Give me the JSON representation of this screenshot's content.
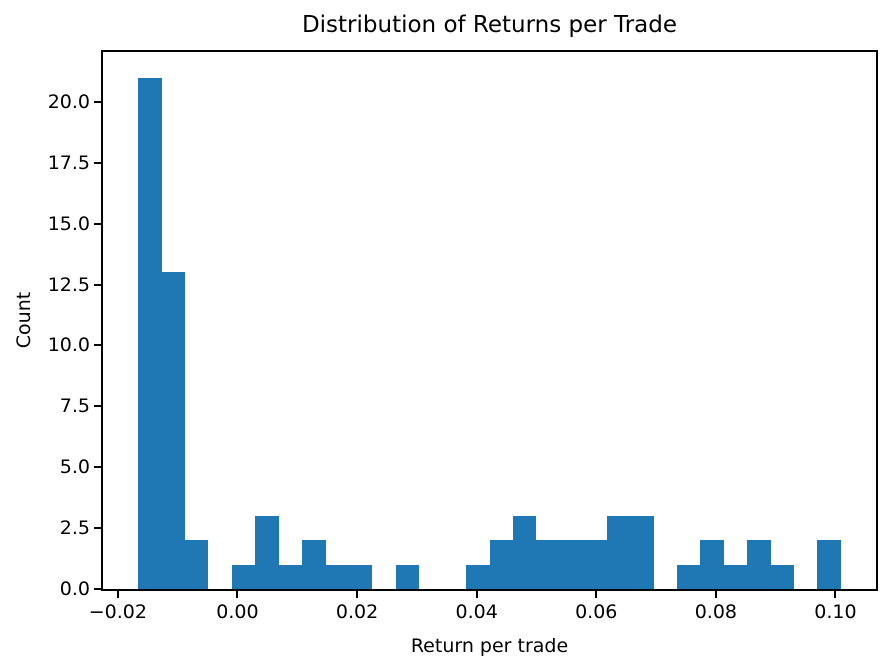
{
  "chart_data": {
    "type": "bar",
    "subtype": "histogram",
    "title": "Distribution of Returns per Trade",
    "xlabel": "Return per trade",
    "ylabel": "Count",
    "bar_color": "#1f77b4",
    "background_color": "#ffffff",
    "spine_color": "#000000",
    "grid": false,
    "legend": null,
    "bin_start": -0.0166,
    "bin_width": 0.003917,
    "counts": [
      21,
      13,
      2,
      0,
      1,
      3,
      1,
      2,
      1,
      1,
      0,
      1,
      0,
      0,
      1,
      2,
      3,
      2,
      2,
      2,
      3,
      3,
      0,
      1,
      2,
      1,
      2,
      1,
      0,
      2
    ],
    "xlim": [
      -0.02248,
      0.10678
    ],
    "ylim": [
      0,
      22.05
    ],
    "xticks": [
      {
        "v": -0.02,
        "label": "−0.02"
      },
      {
        "v": 0.0,
        "label": "0.00"
      },
      {
        "v": 0.02,
        "label": "0.02"
      },
      {
        "v": 0.04,
        "label": "0.04"
      },
      {
        "v": 0.06,
        "label": "0.06"
      },
      {
        "v": 0.08,
        "label": "0.08"
      },
      {
        "v": 0.1,
        "label": "0.10"
      }
    ],
    "yticks": [
      {
        "v": 0,
        "label": "0.0"
      },
      {
        "v": 2.5,
        "label": "2.5"
      },
      {
        "v": 5,
        "label": "5.0"
      },
      {
        "v": 7.5,
        "label": "7.5"
      },
      {
        "v": 10,
        "label": "10.0"
      },
      {
        "v": 12.5,
        "label": "12.5"
      },
      {
        "v": 15,
        "label": "15.0"
      },
      {
        "v": 17.5,
        "label": "17.5"
      },
      {
        "v": 20,
        "label": "20.0"
      }
    ]
  }
}
